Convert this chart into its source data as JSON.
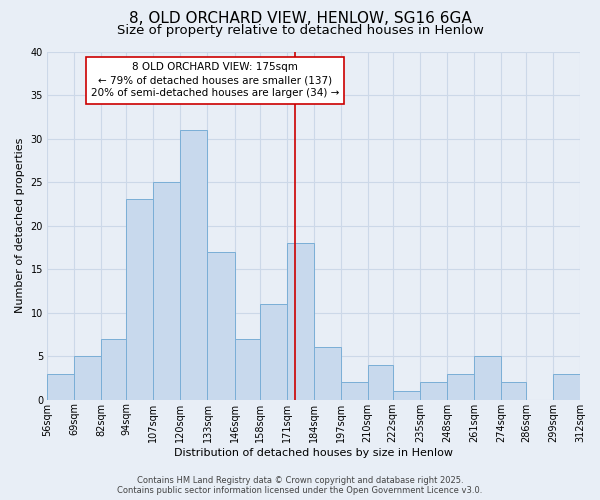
{
  "title": "8, OLD ORCHARD VIEW, HENLOW, SG16 6GA",
  "subtitle": "Size of property relative to detached houses in Henlow",
  "xlabel": "Distribution of detached houses by size in Henlow",
  "ylabel": "Number of detached properties",
  "bar_color": "#c8d9ed",
  "bar_edge_color": "#7aaed6",
  "background_color": "#e8eef6",
  "grid_color": "#ccd8e8",
  "bin_edges": [
    56,
    69,
    82,
    94,
    107,
    120,
    133,
    146,
    158,
    171,
    184,
    197,
    210,
    222,
    235,
    248,
    261,
    274,
    286,
    299,
    312
  ],
  "bin_labels": [
    "56sqm",
    "69sqm",
    "82sqm",
    "94sqm",
    "107sqm",
    "120sqm",
    "133sqm",
    "146sqm",
    "158sqm",
    "171sqm",
    "184sqm",
    "197sqm",
    "210sqm",
    "222sqm",
    "235sqm",
    "248sqm",
    "261sqm",
    "274sqm",
    "286sqm",
    "299sqm",
    "312sqm"
  ],
  "counts": [
    3,
    5,
    7,
    23,
    25,
    31,
    17,
    7,
    11,
    18,
    6,
    2,
    4,
    1,
    2,
    3,
    5,
    2,
    0,
    3
  ],
  "vline_x": 175,
  "vline_color": "#cc0000",
  "annotation_line1": "8 OLD ORCHARD VIEW: 175sqm",
  "annotation_line2": "← 79% of detached houses are smaller (137)",
  "annotation_line3": "20% of semi-detached houses are larger (34) →",
  "annotation_box_edge": "#cc0000",
  "annotation_box_face": "#ffffff",
  "ylim": [
    0,
    40
  ],
  "yticks": [
    0,
    5,
    10,
    15,
    20,
    25,
    30,
    35,
    40
  ],
  "footer_line1": "Contains HM Land Registry data © Crown copyright and database right 2025.",
  "footer_line2": "Contains public sector information licensed under the Open Government Licence v3.0.",
  "title_fontsize": 11,
  "subtitle_fontsize": 9.5,
  "axis_label_fontsize": 8,
  "tick_fontsize": 7,
  "annotation_fontsize": 7.5,
  "footer_fontsize": 6
}
